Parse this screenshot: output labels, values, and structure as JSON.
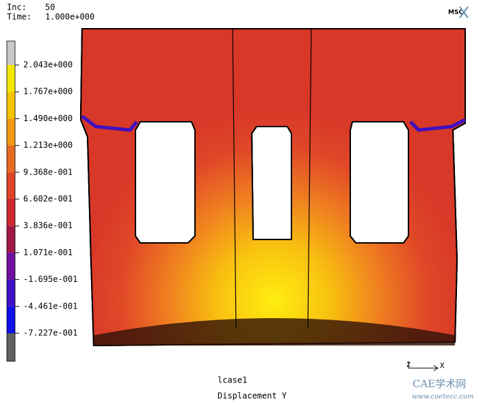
{
  "header": {
    "inc_label": "Inc:",
    "inc_value": "50",
    "time_label": "Time:",
    "time_value": "1.000e+000",
    "logo": "MSC"
  },
  "legend": {
    "labels": [
      "2.043e+000",
      "1.767e+000",
      "1.490e+000",
      "1.213e+000",
      "9.368e-001",
      "6.602e-001",
      "3.836e-001",
      "1.071e-001",
      "-1.695e-001",
      "-4.461e-001",
      "-7.227e-001"
    ]
  },
  "footer": {
    "load_case": "lcase1",
    "result": "Displacement Y"
  },
  "triad": {
    "z": "Z",
    "x": "X"
  },
  "watermark": {
    "title": "CAE学术网",
    "url": "www.caetecc.com"
  }
}
